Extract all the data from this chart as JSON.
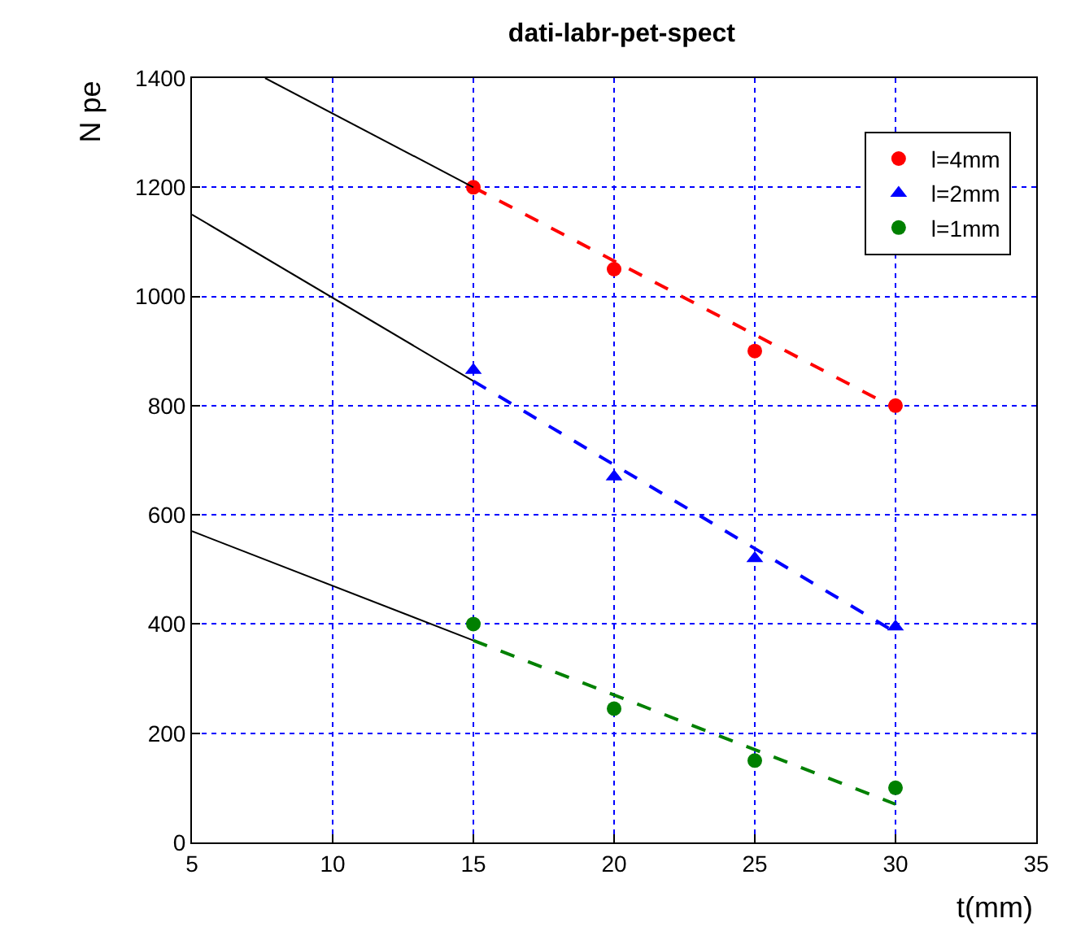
{
  "chart_data": {
    "type": "scatter",
    "title": "dati-labr-pet-spect",
    "xlabel": "t(mm)",
    "ylabel": "N pe",
    "xlim": [
      5,
      35
    ],
    "xticks": [
      5,
      10,
      15,
      20,
      25,
      30,
      35
    ],
    "ylim": [
      0,
      1400
    ],
    "yticks": [
      0,
      200,
      400,
      600,
      800,
      1000,
      1200,
      1400
    ],
    "grid": true,
    "legend": "top right",
    "series": [
      {
        "name": "l=4mm",
        "color": "#ff0000",
        "marker": "circle",
        "x": [
          15,
          20,
          25,
          30
        ],
        "values": [
          1200,
          1050,
          900,
          800
        ]
      },
      {
        "name": "l=2mm",
        "color": "#0000ff",
        "marker": "triangle",
        "x": [
          15,
          20,
          25,
          30
        ],
        "values": [
          865,
          670,
          520,
          395
        ]
      },
      {
        "name": "l=1mm",
        "color": "#008000",
        "marker": "circle",
        "x": [
          15,
          20,
          25,
          30
        ],
        "values": [
          400,
          245,
          150,
          100
        ]
      },
      {
        "type": "line",
        "color": "#ff0000",
        "line_style": "dashed",
        "x": [
          15,
          30
        ],
        "values": [
          1200,
          795
        ]
      },
      {
        "type": "line",
        "color": "#0000ff",
        "line_style": "dashed",
        "x": [
          15,
          30
        ],
        "values": [
          845,
          385
        ]
      },
      {
        "type": "line",
        "color": "#008000",
        "line_style": "dashed",
        "x": [
          15,
          30
        ],
        "values": [
          370,
          70
        ]
      },
      {
        "type": "line",
        "color": "#000000",
        "line_style": "solid",
        "x": [
          7.6,
          15
        ],
        "values": [
          1400,
          1200
        ]
      },
      {
        "type": "line",
        "color": "#000000",
        "line_style": "solid",
        "x": [
          5,
          15
        ],
        "values": [
          1150,
          845
        ]
      },
      {
        "type": "line",
        "color": "#000000",
        "line_style": "solid",
        "x": [
          5,
          15
        ],
        "values": [
          570,
          370
        ]
      }
    ]
  }
}
